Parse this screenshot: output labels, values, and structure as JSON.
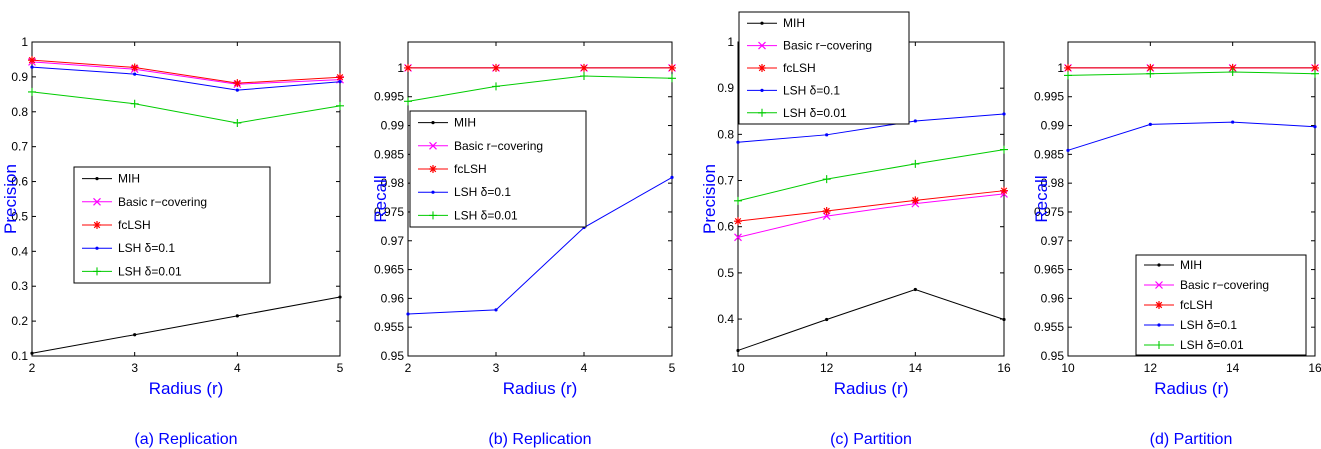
{
  "chart_data": [
    {
      "type": "line",
      "caption": "(a) Replication",
      "xlabel": "Radius (r)",
      "ylabel": "Precision",
      "xlim": [
        2,
        5
      ],
      "ylim": [
        0.1,
        1
      ],
      "xticks": [
        "2",
        "3",
        "4",
        "5"
      ],
      "yticks": [
        "0.1",
        "0.2",
        "0.3",
        "0.4",
        "0.5",
        "0.6",
        "0.7",
        "0.8",
        "0.9",
        "1"
      ],
      "x": [
        2,
        3,
        4,
        5
      ],
      "legend_position": "center",
      "series": [
        {
          "name": "MIH",
          "color": "#000000",
          "marker": "dot",
          "values": [
            0.108,
            0.161,
            0.215,
            0.269
          ]
        },
        {
          "name": "Basic r−covering",
          "color": "#ff00ff",
          "marker": "x",
          "values": [
            0.943,
            0.922,
            0.879,
            0.892
          ]
        },
        {
          "name": "fcLSH",
          "color": "#ff0000",
          "marker": "star",
          "values": [
            0.948,
            0.927,
            0.882,
            0.899
          ]
        },
        {
          "name": "LSH δ=0.1",
          "color": "#0000ff",
          "marker": "dot",
          "values": [
            0.928,
            0.908,
            0.862,
            0.886
          ]
        },
        {
          "name": "LSH δ=0.01",
          "color": "#00cc00",
          "marker": "plus",
          "values": [
            0.857,
            0.823,
            0.768,
            0.817
          ]
        }
      ]
    },
    {
      "type": "line",
      "caption": "(b) Replication",
      "xlabel": "Radius (r)",
      "ylabel": "Recall",
      "xlim": [
        2,
        5
      ],
      "ylim": [
        0.95,
        1.0045
      ],
      "xticks": [
        "2",
        "3",
        "4",
        "5"
      ],
      "yticks": [
        "0.95",
        "0.955",
        "0.96",
        "0.965",
        "0.97",
        "0.975",
        "0.98",
        "0.985",
        "0.99",
        "0.995",
        "1"
      ],
      "x": [
        2,
        3,
        4,
        5
      ],
      "legend_position": "center-left",
      "series": [
        {
          "name": "MIH",
          "color": "#000000",
          "marker": "dot",
          "values": [
            1.0,
            1.0,
            1.0,
            1.0
          ]
        },
        {
          "name": "Basic r−covering",
          "color": "#ff00ff",
          "marker": "x",
          "values": [
            1.0,
            1.0,
            1.0,
            1.0
          ]
        },
        {
          "name": "fcLSH",
          "color": "#ff0000",
          "marker": "star",
          "values": [
            1.0,
            1.0,
            1.0,
            1.0
          ]
        },
        {
          "name": "LSH δ=0.1",
          "color": "#0000ff",
          "marker": "dot",
          "values": [
            0.9573,
            0.958,
            0.9723,
            0.981
          ]
        },
        {
          "name": "LSH δ=0.01",
          "color": "#00cc00",
          "marker": "plus",
          "values": [
            0.9942,
            0.9968,
            0.9986,
            0.9982
          ]
        }
      ]
    },
    {
      "type": "line",
      "caption": "(c) Partition",
      "xlabel": "Radius (r)",
      "ylabel": "Precision",
      "xlim": [
        10,
        16
      ],
      "ylim": [
        0.32,
        1
      ],
      "xticks": [
        "10",
        "12",
        "14",
        "16"
      ],
      "yticks": [
        "0.4",
        "0.5",
        "0.6",
        "0.7",
        "0.8",
        "0.9",
        "1"
      ],
      "x": [
        10,
        12,
        14,
        16
      ],
      "legend_position": "top-left",
      "series": [
        {
          "name": "MIH",
          "color": "#000000",
          "marker": "dot",
          "values": [
            0.332,
            0.399,
            0.464,
            0.399
          ]
        },
        {
          "name": "Basic r−covering",
          "color": "#ff00ff",
          "marker": "x",
          "values": [
            0.577,
            0.623,
            0.65,
            0.671
          ]
        },
        {
          "name": "fcLSH",
          "color": "#ff0000",
          "marker": "star",
          "values": [
            0.612,
            0.634,
            0.657,
            0.678
          ]
        },
        {
          "name": "LSH δ=0.1",
          "color": "#0000ff",
          "marker": "dot",
          "values": [
            0.783,
            0.799,
            0.829,
            0.844
          ]
        },
        {
          "name": "LSH δ=0.01",
          "color": "#00cc00",
          "marker": "plus",
          "values": [
            0.656,
            0.703,
            0.736,
            0.767
          ]
        }
      ]
    },
    {
      "type": "line",
      "caption": "(d) Partition",
      "xlabel": "Radius (r)",
      "ylabel": "Recall",
      "xlim": [
        10,
        16
      ],
      "ylim": [
        0.95,
        1.0045
      ],
      "xticks": [
        "10",
        "12",
        "14",
        "16"
      ],
      "yticks": [
        "0.95",
        "0.955",
        "0.96",
        "0.965",
        "0.97",
        "0.975",
        "0.98",
        "0.985",
        "0.99",
        "0.995",
        "1"
      ],
      "x": [
        10,
        12,
        14,
        16
      ],
      "legend_position": "bottom-right",
      "series": [
        {
          "name": "MIH",
          "color": "#000000",
          "marker": "dot",
          "values": [
            1.0,
            1.0,
            1.0,
            1.0
          ]
        },
        {
          "name": "Basic r−covering",
          "color": "#ff00ff",
          "marker": "x",
          "values": [
            1.0,
            1.0,
            1.0,
            1.0
          ]
        },
        {
          "name": "fcLSH",
          "color": "#ff0000",
          "marker": "star",
          "values": [
            1.0,
            1.0,
            1.0,
            1.0
          ]
        },
        {
          "name": "LSH δ=0.1",
          "color": "#0000ff",
          "marker": "dot",
          "values": [
            0.9857,
            0.9902,
            0.9906,
            0.9898
          ]
        },
        {
          "name": "LSH δ=0.01",
          "color": "#00cc00",
          "marker": "plus",
          "values": [
            0.9987,
            0.999,
            0.9993,
            0.999
          ]
        }
      ]
    }
  ]
}
